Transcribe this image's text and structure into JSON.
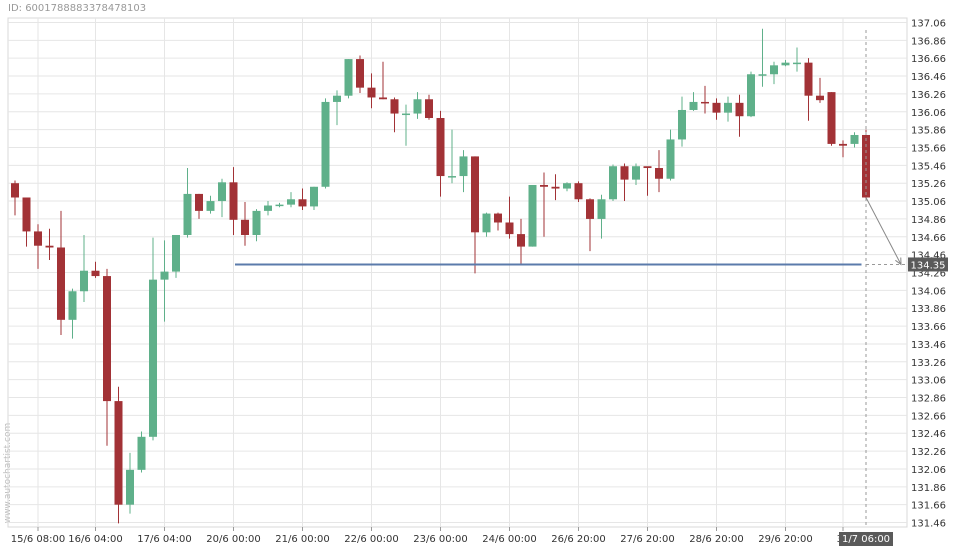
{
  "header": {
    "id_text": "ID: 6001788883378478103"
  },
  "watermark": "www.autochartist.com",
  "colors": {
    "bullish": "#5fb08a",
    "bearish": "#a23236",
    "support_line": "#5b7bab",
    "grid": "#e6e6e6",
    "axis_text": "#333333",
    "badge_bg": "#5a5a5a",
    "badge_text": "#ffffff"
  },
  "chart_data": {
    "type": "candlestick",
    "grid": true,
    "ylim": [
      131.41,
      137.11
    ],
    "y_ticks": [
      "131.46",
      "131.66",
      "131.86",
      "132.06",
      "132.26",
      "132.46",
      "132.66",
      "132.86",
      "133.06",
      "133.26",
      "133.46",
      "133.66",
      "133.86",
      "134.06",
      "134.26",
      "134.46",
      "134.66",
      "134.86",
      "135.06",
      "135.26",
      "135.46",
      "135.66",
      "135.86",
      "136.06",
      "136.26",
      "136.46",
      "136.66",
      "136.86",
      "137.06"
    ],
    "x_ticks": [
      {
        "label": "15/6 08:00",
        "index": 2
      },
      {
        "label": "16/6 04:00",
        "index": 7
      },
      {
        "label": "17/6 04:00",
        "index": 13
      },
      {
        "label": "20/6 00:00",
        "index": 19
      },
      {
        "label": "21/6 00:00",
        "index": 25
      },
      {
        "label": "22/6 00:00",
        "index": 31
      },
      {
        "label": "23/6 00:00",
        "index": 37
      },
      {
        "label": "24/6 00:00",
        "index": 43
      },
      {
        "label": "26/6 20:00",
        "index": 49
      },
      {
        "label": "27/6 20:00",
        "index": 55
      },
      {
        "label": "28/6 20:00",
        "index": 61
      },
      {
        "label": "29/6 20:00",
        "index": 67
      },
      {
        "label": "30",
        "index": 72
      }
    ],
    "candles": [
      {
        "o": 135.26,
        "h": 135.29,
        "l": 134.9,
        "c": 135.1
      },
      {
        "o": 135.1,
        "h": 135.1,
        "l": 134.55,
        "c": 134.72
      },
      {
        "o": 134.72,
        "h": 134.8,
        "l": 134.3,
        "c": 134.56
      },
      {
        "o": 134.56,
        "h": 134.75,
        "l": 134.4,
        "c": 134.54
      },
      {
        "o": 134.54,
        "h": 134.95,
        "l": 133.56,
        "c": 133.73
      },
      {
        "o": 133.73,
        "h": 134.08,
        "l": 133.52,
        "c": 134.05
      },
      {
        "o": 134.05,
        "h": 134.68,
        "l": 133.93,
        "c": 134.28
      },
      {
        "o": 134.28,
        "h": 134.38,
        "l": 134.2,
        "c": 134.22
      },
      {
        "o": 134.22,
        "h": 134.3,
        "l": 132.32,
        "c": 132.82
      },
      {
        "o": 132.82,
        "h": 132.98,
        "l": 131.45,
        "c": 131.66
      },
      {
        "o": 131.66,
        "h": 132.24,
        "l": 131.56,
        "c": 132.05
      },
      {
        "o": 132.05,
        "h": 132.48,
        "l": 132.02,
        "c": 132.42
      },
      {
        "o": 132.42,
        "h": 134.65,
        "l": 132.38,
        "c": 134.18
      },
      {
        "o": 134.18,
        "h": 134.62,
        "l": 133.71,
        "c": 134.27
      },
      {
        "o": 134.27,
        "h": 134.68,
        "l": 134.2,
        "c": 134.68
      },
      {
        "o": 134.68,
        "h": 135.43,
        "l": 134.65,
        "c": 135.14
      },
      {
        "o": 135.14,
        "h": 135.14,
        "l": 134.86,
        "c": 134.95
      },
      {
        "o": 134.95,
        "h": 135.12,
        "l": 134.92,
        "c": 135.06
      },
      {
        "o": 135.06,
        "h": 135.31,
        "l": 134.88,
        "c": 135.27
      },
      {
        "o": 135.27,
        "h": 135.44,
        "l": 134.68,
        "c": 134.85
      },
      {
        "o": 134.85,
        "h": 135.05,
        "l": 134.56,
        "c": 134.68
      },
      {
        "o": 134.68,
        "h": 134.97,
        "l": 134.61,
        "c": 134.95
      },
      {
        "o": 134.95,
        "h": 135.06,
        "l": 134.9,
        "c": 135.01
      },
      {
        "o": 135.01,
        "h": 135.04,
        "l": 134.99,
        "c": 135.02
      },
      {
        "o": 135.02,
        "h": 135.16,
        "l": 134.99,
        "c": 135.08
      },
      {
        "o": 135.08,
        "h": 135.2,
        "l": 134.96,
        "c": 135.0
      },
      {
        "o": 135.0,
        "h": 135.22,
        "l": 134.96,
        "c": 135.22
      },
      {
        "o": 135.22,
        "h": 136.21,
        "l": 135.2,
        "c": 136.17
      },
      {
        "o": 136.17,
        "h": 136.3,
        "l": 135.91,
        "c": 136.24
      },
      {
        "o": 136.24,
        "h": 136.65,
        "l": 136.21,
        "c": 136.65
      },
      {
        "o": 136.65,
        "h": 136.69,
        "l": 136.27,
        "c": 136.33
      },
      {
        "o": 136.33,
        "h": 136.49,
        "l": 136.1,
        "c": 136.22
      },
      {
        "o": 136.22,
        "h": 136.62,
        "l": 136.2,
        "c": 136.2
      },
      {
        "o": 136.2,
        "h": 136.22,
        "l": 135.83,
        "c": 136.04
      },
      {
        "o": 136.04,
        "h": 136.14,
        "l": 135.68,
        "c": 136.04
      },
      {
        "o": 136.04,
        "h": 136.28,
        "l": 135.98,
        "c": 136.2
      },
      {
        "o": 136.2,
        "h": 136.25,
        "l": 135.97,
        "c": 135.99
      },
      {
        "o": 135.99,
        "h": 136.07,
        "l": 135.11,
        "c": 135.34
      },
      {
        "o": 135.34,
        "h": 135.86,
        "l": 135.26,
        "c": 135.34
      },
      {
        "o": 135.34,
        "h": 135.63,
        "l": 135.16,
        "c": 135.56
      },
      {
        "o": 135.56,
        "h": 135.56,
        "l": 134.25,
        "c": 134.71
      },
      {
        "o": 134.71,
        "h": 134.93,
        "l": 134.66,
        "c": 134.92
      },
      {
        "o": 134.92,
        "h": 134.93,
        "l": 134.73,
        "c": 134.82
      },
      {
        "o": 134.82,
        "h": 135.11,
        "l": 134.64,
        "c": 134.69
      },
      {
        "o": 134.69,
        "h": 134.86,
        "l": 134.35,
        "c": 134.55
      },
      {
        "o": 134.55,
        "h": 135.24,
        "l": 134.55,
        "c": 135.24
      },
      {
        "o": 135.24,
        "h": 135.38,
        "l": 134.66,
        "c": 135.22
      },
      {
        "o": 135.22,
        "h": 135.36,
        "l": 135.07,
        "c": 135.2
      },
      {
        "o": 135.2,
        "h": 135.27,
        "l": 135.17,
        "c": 135.26
      },
      {
        "o": 135.26,
        "h": 135.28,
        "l": 135.05,
        "c": 135.08
      },
      {
        "o": 135.08,
        "h": 135.09,
        "l": 134.5,
        "c": 134.86
      },
      {
        "o": 134.86,
        "h": 135.13,
        "l": 134.64,
        "c": 135.08
      },
      {
        "o": 135.08,
        "h": 135.47,
        "l": 135.06,
        "c": 135.45
      },
      {
        "o": 135.45,
        "h": 135.48,
        "l": 135.06,
        "c": 135.3
      },
      {
        "o": 135.3,
        "h": 135.48,
        "l": 135.24,
        "c": 135.45
      },
      {
        "o": 135.45,
        "h": 135.44,
        "l": 135.12,
        "c": 135.43
      },
      {
        "o": 135.43,
        "h": 135.63,
        "l": 135.16,
        "c": 135.31
      },
      {
        "o": 135.31,
        "h": 135.86,
        "l": 135.29,
        "c": 135.75
      },
      {
        "o": 135.75,
        "h": 136.23,
        "l": 135.67,
        "c": 136.08
      },
      {
        "o": 136.08,
        "h": 136.28,
        "l": 136.07,
        "c": 136.17
      },
      {
        "o": 136.17,
        "h": 136.35,
        "l": 136.04,
        "c": 136.16
      },
      {
        "o": 136.16,
        "h": 136.21,
        "l": 135.97,
        "c": 136.05
      },
      {
        "o": 136.05,
        "h": 136.23,
        "l": 135.95,
        "c": 136.16
      },
      {
        "o": 136.16,
        "h": 136.25,
        "l": 135.78,
        "c": 136.01
      },
      {
        "o": 136.01,
        "h": 136.51,
        "l": 136.0,
        "c": 136.48
      },
      {
        "o": 136.48,
        "h": 136.99,
        "l": 136.34,
        "c": 136.48
      },
      {
        "o": 136.48,
        "h": 136.62,
        "l": 136.37,
        "c": 136.58
      },
      {
        "o": 136.58,
        "h": 136.64,
        "l": 136.57,
        "c": 136.61
      },
      {
        "o": 136.61,
        "h": 136.78,
        "l": 136.51,
        "c": 136.61
      },
      {
        "o": 136.61,
        "h": 136.66,
        "l": 135.96,
        "c": 136.24
      },
      {
        "o": 136.24,
        "h": 136.44,
        "l": 136.16,
        "c": 136.19
      },
      {
        "o": 136.28,
        "h": 136.28,
        "l": 135.68,
        "c": 135.7
      },
      {
        "o": 135.7,
        "h": 135.74,
        "l": 135.55,
        "c": 135.68
      },
      {
        "o": 135.7,
        "h": 135.83,
        "l": 135.66,
        "c": 135.8
      },
      {
        "o": 135.8,
        "h": 135.86,
        "l": 135.06,
        "c": 135.1
      }
    ],
    "support_line": {
      "price": 134.35,
      "from_index": 20,
      "to_index": 73
    },
    "forecast_arrow": {
      "from_price": 135.1,
      "to_price": 134.35
    },
    "price_badge": "134.35",
    "time_badge": "1/7 06:00"
  }
}
